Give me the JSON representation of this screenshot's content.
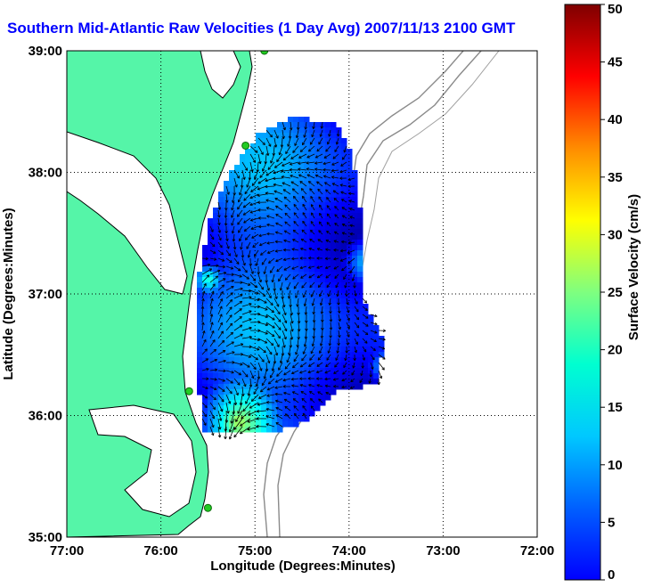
{
  "title": "Southern Mid-Atlantic Raw Velocities (1 Day Avg) 2007/11/13 2100 GMT",
  "x_axis": {
    "label": "Longitude (Degrees:Minutes)",
    "ticks": [
      "77:00",
      "76:00",
      "75:00",
      "74:00",
      "73:00",
      "72:00"
    ],
    "range_deg_west": [
      77,
      72
    ]
  },
  "y_axis": {
    "label": "Latitude (Degrees:Minutes)",
    "ticks": [
      "39:00",
      "38:00",
      "37:00",
      "36:00",
      "35:00"
    ],
    "range_deg_north": [
      35,
      39
    ]
  },
  "colorbar": {
    "label": "Surface Velocity (cm/s)",
    "ticks": [
      "50",
      "45",
      "40",
      "35",
      "30",
      "25",
      "20",
      "15",
      "10",
      "5",
      "0"
    ],
    "range": [
      0,
      50
    ],
    "colormap": "jet"
  },
  "colors": {
    "land": "#55f5a8",
    "water": "#ffffff",
    "bathymetry_contours": "#8a8a8a",
    "coastline": "#000000",
    "vectors": "#000000",
    "stations": "#22cc22",
    "title": "#0000ff"
  },
  "grid": "dotted",
  "stations": [
    {
      "lon": 74.9,
      "lat": 39.0
    },
    {
      "lon": 75.1,
      "lat": 38.22
    },
    {
      "lon": 75.7,
      "lat": 36.2
    },
    {
      "lon": 75.5,
      "lat": 35.24
    }
  ]
}
